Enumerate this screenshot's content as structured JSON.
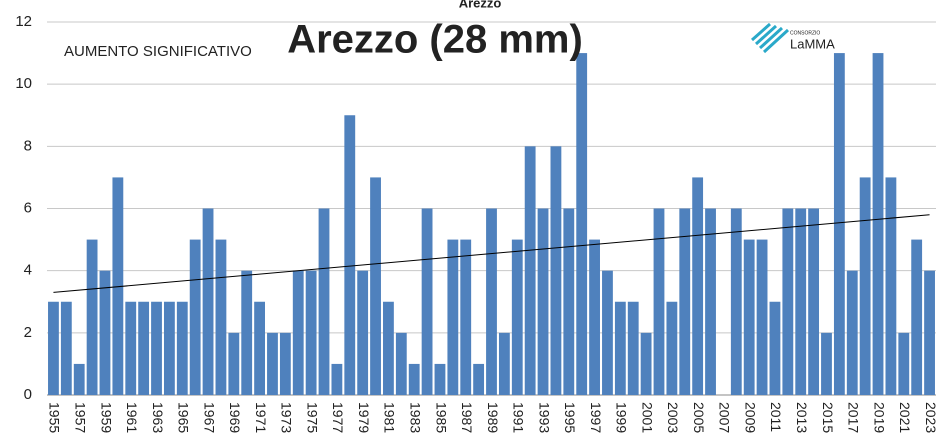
{
  "chart_data": {
    "type": "bar",
    "title": "Arezzo",
    "overlay_title": "Arezzo (28 mm)",
    "annotation": "AUMENTO SIGNIFICATIVO",
    "logo": {
      "small": "CONSORZIO",
      "text": "LaMMA"
    },
    "categories": [
      "1955",
      null,
      "1957",
      null,
      "1959",
      null,
      "1961",
      null,
      "1963",
      null,
      "1965",
      null,
      "1967",
      null,
      "1969",
      null,
      "1971",
      null,
      "1973",
      null,
      "1975",
      null,
      "1977",
      null,
      "1979",
      null,
      "1981",
      null,
      "1983",
      null,
      "1985",
      null,
      "1987",
      null,
      "1989",
      null,
      "1991",
      null,
      "1993",
      null,
      "1995",
      null,
      "1997",
      null,
      "1999",
      null,
      "2001",
      null,
      "2003",
      null,
      "2005",
      null,
      "2007",
      null,
      "2009",
      null,
      "2011",
      null,
      "2013",
      null,
      "2015",
      null,
      "2017",
      null,
      "2019",
      null,
      "2021",
      null,
      "2023"
    ],
    "values": [
      3,
      3,
      1,
      5,
      4,
      7,
      3,
      3,
      3,
      3,
      3,
      5,
      6,
      5,
      2,
      4,
      3,
      2,
      2,
      4,
      4,
      6,
      1,
      9,
      4,
      7,
      3,
      2,
      1,
      6,
      1,
      5,
      5,
      1,
      6,
      2,
      5,
      8,
      6,
      8,
      6,
      11,
      5,
      4,
      3,
      3,
      2,
      6,
      3,
      6,
      7,
      6,
      0,
      6,
      5,
      5,
      3,
      6,
      6,
      6,
      2,
      11,
      4,
      7,
      11,
      7,
      2,
      5,
      4
    ],
    "color": "#4f81bd",
    "trendline": [
      3.3,
      5.8
    ],
    "ylim": [
      0,
      12
    ],
    "yticks": [
      0,
      2,
      4,
      6,
      8,
      10,
      12
    ],
    "grid": true
  }
}
